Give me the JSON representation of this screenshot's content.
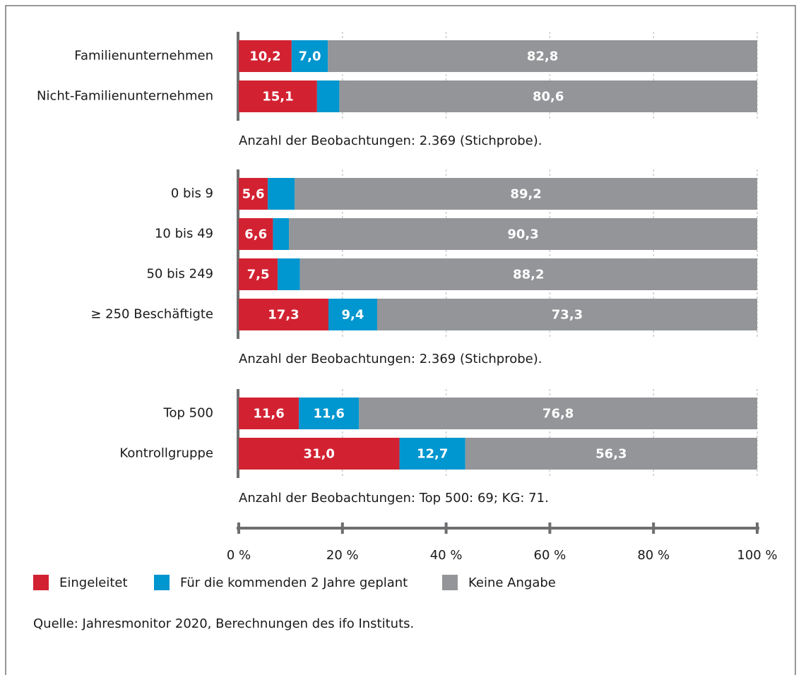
{
  "chart_data": {
    "type": "bar",
    "orientation": "horizontal",
    "stacked": true,
    "panels": [
      {
        "categories": [
          "Familienunternehmen",
          "Nicht-Familienunternehmen"
        ],
        "note": "Anzahl der Beobachtungen: 2.369 (Stichprobe)."
      },
      {
        "categories": [
          "0 bis 9",
          "10 bis 49",
          "50 bis 249",
          "≥ 250 Beschäftigte"
        ],
        "note": "Anzahl der Beobachtungen: 2.369 (Stichprobe)."
      },
      {
        "categories": [
          "Top 500",
          "Kontrollgruppe"
        ],
        "note": "Anzahl der Beobachtungen: Top 500: 69; KG: 71."
      }
    ],
    "series": [
      {
        "name": "Eingeleitet",
        "color": "#d22232",
        "values": [
          10.2,
          15.1,
          5.6,
          6.6,
          7.5,
          17.3,
          11.6,
          31.0
        ],
        "value_labels": [
          "10,2",
          "15,1",
          "5,6",
          "6,6",
          "7,5",
          "17,3",
          "11,6",
          "31,0"
        ]
      },
      {
        "name": "Für die kommenden 2 Jahre geplant",
        "color": "#0096cf",
        "values": [
          7.0,
          4.3,
          5.2,
          3.1,
          4.3,
          9.4,
          11.6,
          12.7
        ],
        "value_labels": [
          "7,0",
          null,
          null,
          null,
          null,
          "9,4",
          "11,6",
          "12,7"
        ]
      },
      {
        "name": "Keine Angabe",
        "color": "#939598",
        "values": [
          82.8,
          80.6,
          89.2,
          90.3,
          88.2,
          73.3,
          76.8,
          56.3
        ],
        "value_labels": [
          "82,8",
          "80,6",
          "89,2",
          "90,3",
          "88,2",
          "73,3",
          "76,8",
          "56,3"
        ]
      }
    ],
    "xlim": [
      0,
      100
    ],
    "xticks": [
      {
        "value": 0,
        "label": "0 %"
      },
      {
        "value": 20,
        "label": "20 %"
      },
      {
        "value": 40,
        "label": "40 %"
      },
      {
        "value": 60,
        "label": "60 %"
      },
      {
        "value": 80,
        "label": "80 %"
      },
      {
        "value": 100,
        "label": "100 %"
      }
    ],
    "grid": true,
    "legend": "bottom-left",
    "source": "Quelle: Jahresmonitor 2020, Berechnungen des ifo Instituts."
  }
}
